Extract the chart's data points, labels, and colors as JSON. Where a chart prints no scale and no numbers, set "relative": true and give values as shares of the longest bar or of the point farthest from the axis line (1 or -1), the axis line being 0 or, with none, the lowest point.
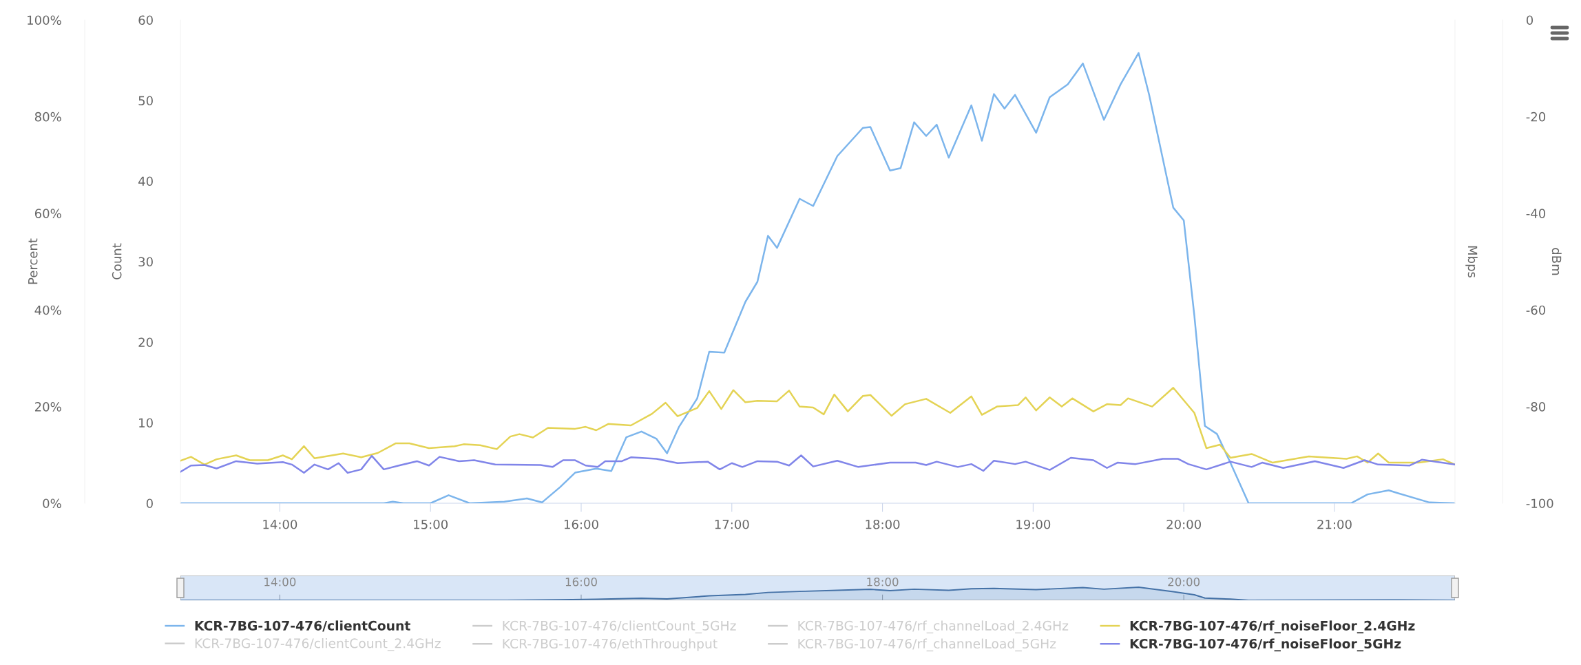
{
  "chart_data": [
    {
      "type": "line",
      "ylabel": "Percent",
      "ylim": [
        0,
        100
      ],
      "yticks": [
        {
          "value": 0,
          "label": "0%"
        },
        {
          "value": 20,
          "label": "20%"
        },
        {
          "value": 40,
          "label": "40%"
        },
        {
          "value": 60,
          "label": "60%"
        },
        {
          "value": 80,
          "label": "80%"
        },
        {
          "value": 100,
          "label": "100%"
        }
      ],
      "y2label": "Count",
      "y2lim": [
        0,
        60
      ],
      "y2ticks": [
        0,
        10,
        20,
        30,
        40,
        50,
        60
      ],
      "annotations": [
        "Mbps"
      ],
      "y3label": "dBm",
      "y3lim": [
        -100,
        0
      ],
      "y3ticks": [
        -100,
        -80,
        -60,
        -40,
        -20,
        0
      ],
      "xlim": [
        13.34,
        21.8
      ],
      "xticks": [
        {
          "value": 14,
          "label": "14:00"
        },
        {
          "value": 15,
          "label": "15:00"
        },
        {
          "value": 16,
          "label": "16:00"
        },
        {
          "value": 17,
          "label": "17:00"
        },
        {
          "value": 18,
          "label": "18:00"
        },
        {
          "value": 19,
          "label": "19:00"
        },
        {
          "value": 20,
          "label": "20:00"
        },
        {
          "value": 21,
          "label": "21:00"
        }
      ],
      "legend": "bottom",
      "series": [
        {
          "name": "KCR-7BG-107-476/clientCount",
          "color": "#7cb5ec",
          "axis": "y2",
          "x": [
            13.34,
            14.69,
            14.75,
            14.82,
            15.0,
            15.12,
            15.26,
            15.49,
            15.64,
            15.74,
            15.86,
            15.96,
            16.1,
            16.2,
            16.3,
            16.4,
            16.5,
            16.57,
            16.65,
            16.77,
            16.85,
            16.95,
            17.09,
            17.17,
            17.24,
            17.3,
            17.45,
            17.54,
            17.7,
            17.87,
            17.92,
            18.05,
            18.12,
            18.21,
            18.29,
            18.36,
            18.44,
            18.59,
            18.66,
            18.74,
            18.81,
            18.88,
            19.02,
            19.11,
            19.23,
            19.33,
            19.47,
            19.58,
            19.7,
            19.77,
            19.93,
            20.0,
            20.07,
            20.14,
            20.22,
            20.31,
            20.43,
            21.11,
            21.22,
            21.36,
            21.43,
            21.63,
            21.8
          ],
          "values": [
            0,
            0,
            0.2,
            0,
            0,
            1.0,
            0,
            0.2,
            0.6,
            0.1,
            2,
            3.8,
            4.3,
            4.0,
            8.2,
            8.9,
            8.0,
            6.2,
            9.5,
            13,
            18.8,
            18.7,
            25,
            27.5,
            33.2,
            31.7,
            37.8,
            36.9,
            43.1,
            46.6,
            46.7,
            41.3,
            41.6,
            47.3,
            45.6,
            47.0,
            42.9,
            49.4,
            45.0,
            50.8,
            49.0,
            50.7,
            46.0,
            50.4,
            52.0,
            54.6,
            47.6,
            52.0,
            55.9,
            50.7,
            36.7,
            35.1,
            23.3,
            9.6,
            8.6,
            5.0,
            0,
            0,
            1.1,
            1.6,
            1.2,
            0.1,
            0
          ]
        },
        {
          "name": "KCR-7BG-107-476/clientCount_2.4GHz",
          "color": "#cccccc"
        },
        {
          "name": "KCR-7BG-107-476/clientCount_5GHz",
          "color": "#cccccc"
        },
        {
          "name": "KCR-7BG-107-476/ethThroughput",
          "color": "#cccccc"
        },
        {
          "name": "KCR-7BG-107-476/rf_channelLoad_2.4GHz",
          "color": "#cccccc"
        },
        {
          "name": "KCR-7BG-107-476/rf_channelLoad_5GHz",
          "color": "#cccccc"
        },
        {
          "name": "KCR-7BG-107-476/rf_noiseFloor_2.4GHz",
          "color": "#e4d354",
          "axis": "y3",
          "x": [
            13.34,
            13.41,
            13.5,
            13.58,
            13.71,
            13.8,
            13.92,
            14.02,
            14.08,
            14.16,
            14.23,
            14.42,
            14.54,
            14.65,
            14.77,
            14.86,
            14.99,
            15.16,
            15.22,
            15.33,
            15.44,
            15.53,
            15.59,
            15.68,
            15.78,
            15.96,
            16.03,
            16.1,
            16.18,
            16.33,
            16.47,
            16.56,
            16.64,
            16.77,
            16.85,
            16.93,
            17.01,
            17.09,
            17.17,
            17.3,
            17.38,
            17.45,
            17.54,
            17.61,
            17.68,
            17.77,
            17.87,
            17.92,
            18.06,
            18.15,
            18.29,
            18.45,
            18.59,
            18.66,
            18.76,
            18.9,
            18.95,
            19.02,
            19.11,
            19.19,
            19.26,
            19.4,
            19.49,
            19.58,
            19.63,
            19.79,
            19.93,
            20.07,
            20.15,
            20.24,
            20.31,
            20.45,
            20.59,
            20.83,
            21.08,
            21.15,
            21.22,
            21.29,
            21.36,
            21.56,
            21.72,
            21.8
          ],
          "values": [
            -91.2,
            -90.4,
            -92.0,
            -90.9,
            -90.1,
            -91.1,
            -91.1,
            -90.1,
            -90.9,
            -88.2,
            -90.7,
            -89.7,
            -90.5,
            -89.6,
            -87.6,
            -87.6,
            -88.6,
            -88.2,
            -87.8,
            -88.0,
            -88.8,
            -86.2,
            -85.7,
            -86.4,
            -84.4,
            -84.6,
            -84.2,
            -84.9,
            -83.6,
            -83.9,
            -81.5,
            -79.2,
            -82.0,
            -80.3,
            -76.8,
            -80.5,
            -76.6,
            -79.1,
            -78.8,
            -78.9,
            -76.7,
            -80.0,
            -80.2,
            -81.6,
            -77.5,
            -81.0,
            -77.8,
            -77.6,
            -81.9,
            -79.5,
            -78.4,
            -81.3,
            -77.9,
            -81.7,
            -80.0,
            -79.7,
            -78.1,
            -80.8,
            -78.1,
            -80.0,
            -78.3,
            -81.0,
            -79.5,
            -79.7,
            -78.3,
            -80.0,
            -76.1,
            -81.3,
            -88.6,
            -87.9,
            -90.6,
            -89.8,
            -91.6,
            -90.3,
            -90.8,
            -90.3,
            -91.6,
            -89.7,
            -91.6,
            -91.6,
            -90.9,
            -92.0
          ]
        },
        {
          "name": "KCR-7BG-107-476/rf_noiseFloor_5GHz",
          "color": "#8085e9",
          "axis": "y3",
          "x": [
            13.34,
            13.41,
            13.5,
            13.58,
            13.71,
            13.85,
            14.02,
            14.08,
            14.16,
            14.23,
            14.32,
            14.39,
            14.45,
            14.54,
            14.61,
            14.69,
            14.79,
            14.91,
            14.99,
            15.06,
            15.19,
            15.29,
            15.43,
            15.73,
            15.81,
            15.88,
            15.96,
            16.03,
            16.11,
            16.16,
            16.27,
            16.33,
            16.5,
            16.64,
            16.84,
            16.92,
            17.0,
            17.07,
            17.17,
            17.3,
            17.38,
            17.46,
            17.54,
            17.7,
            17.84,
            18.05,
            18.22,
            18.29,
            18.36,
            18.5,
            18.59,
            18.67,
            18.74,
            18.88,
            18.95,
            19.11,
            19.25,
            19.4,
            19.49,
            19.56,
            19.68,
            19.86,
            19.96,
            20.03,
            20.15,
            20.31,
            20.45,
            20.52,
            20.66,
            20.87,
            21.06,
            21.2,
            21.29,
            21.5,
            21.58,
            21.8
          ],
          "values": [
            -93.5,
            -92.2,
            -92.1,
            -92.8,
            -91.3,
            -91.8,
            -91.5,
            -92.0,
            -93.7,
            -92.0,
            -93.0,
            -91.7,
            -93.7,
            -93.0,
            -90.2,
            -93.0,
            -92.2,
            -91.3,
            -92.2,
            -90.4,
            -91.3,
            -91.1,
            -92.0,
            -92.1,
            -92.5,
            -91.1,
            -91.1,
            -92.2,
            -92.5,
            -91.3,
            -91.3,
            -90.5,
            -90.8,
            -91.7,
            -91.4,
            -93.0,
            -91.7,
            -92.5,
            -91.3,
            -91.4,
            -92.2,
            -90.1,
            -92.4,
            -91.2,
            -92.5,
            -91.6,
            -91.6,
            -92.1,
            -91.4,
            -92.5,
            -91.9,
            -93.3,
            -91.2,
            -91.9,
            -91.4,
            -93.1,
            -90.6,
            -91.1,
            -92.7,
            -91.6,
            -91.9,
            -90.8,
            -90.8,
            -91.9,
            -93.0,
            -91.4,
            -92.5,
            -91.6,
            -92.7,
            -91.3,
            -92.7,
            -91.1,
            -92.0,
            -92.2,
            -91.0,
            -92.0
          ]
        }
      ]
    },
    {
      "type": "area",
      "relative": true,
      "tick_labels": "x",
      "color": "#4572a7",
      "xlim": [
        13.34,
        21.8
      ],
      "xticks": [
        {
          "value": 14,
          "label": "14:00"
        },
        {
          "value": 16,
          "label": "16:00"
        },
        {
          "value": 18,
          "label": "18:00"
        },
        {
          "value": 20,
          "label": "20:00"
        }
      ],
      "x": [
        13.34,
        15.5,
        15.86,
        16.1,
        16.4,
        16.57,
        16.85,
        17.09,
        17.24,
        17.45,
        17.7,
        17.92,
        18.05,
        18.21,
        18.44,
        18.59,
        18.74,
        19.02,
        19.33,
        19.47,
        19.7,
        19.93,
        20.07,
        20.14,
        20.31,
        20.43,
        21.36,
        21.8
      ],
      "values": [
        0,
        0,
        0.04,
        0.08,
        0.16,
        0.11,
        0.34,
        0.45,
        0.6,
        0.68,
        0.77,
        0.84,
        0.74,
        0.85,
        0.77,
        0.88,
        0.91,
        0.82,
        0.98,
        0.85,
        1,
        0.66,
        0.42,
        0.17,
        0.09,
        0,
        0.03,
        0
      ]
    }
  ]
}
